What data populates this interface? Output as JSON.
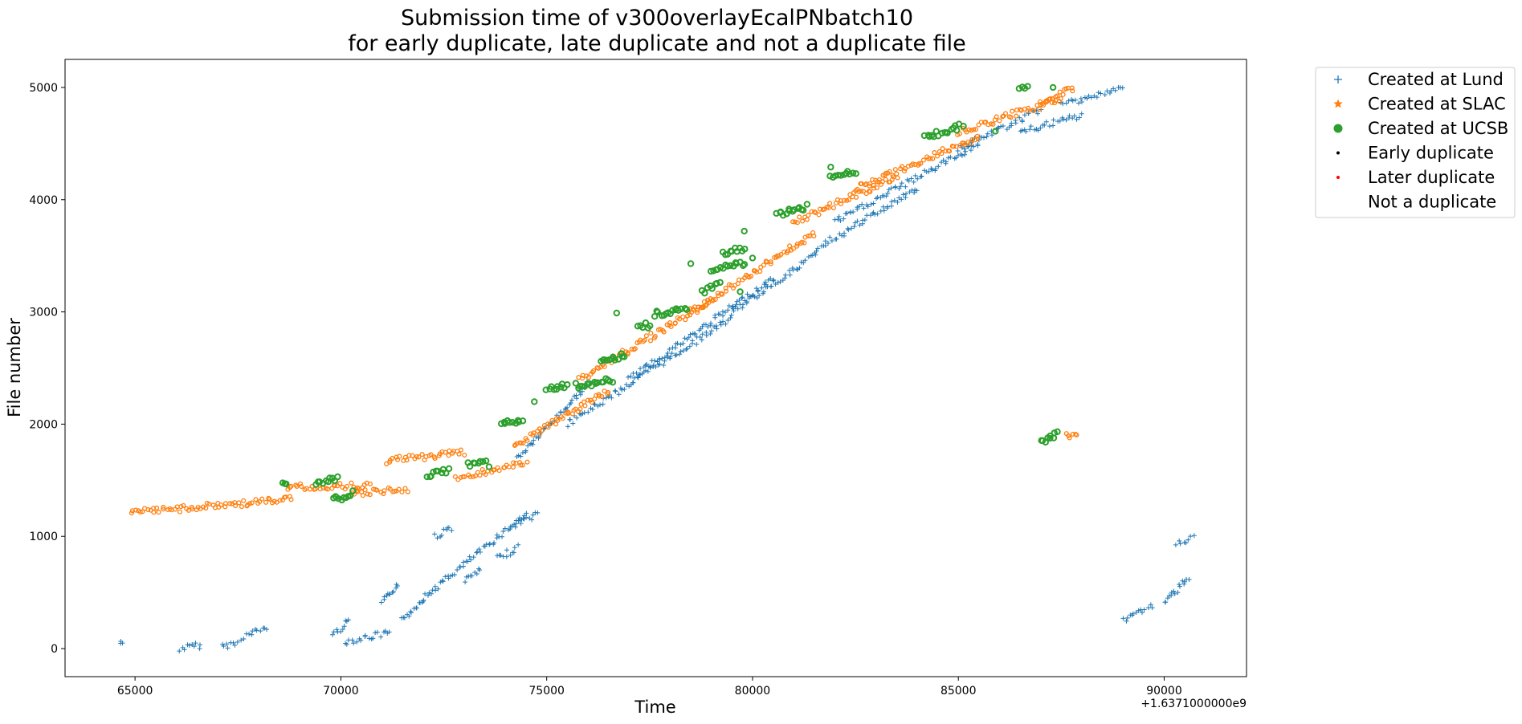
{
  "chart_data": {
    "type": "scatter",
    "title_line1": "Submission time of v300overlayEcalPNbatch10",
    "title_line2": "for early duplicate, late duplicate and not a duplicate file",
    "xlabel": "Time",
    "ylabel": "File number",
    "x_offset_label": "+1.6371000000e9",
    "xlim": [
      63300,
      92000
    ],
    "ylim": [
      -250,
      5250
    ],
    "xticks": [
      65000,
      70000,
      75000,
      80000,
      85000,
      90000
    ],
    "xtick_labels": [
      "65000",
      "70000",
      "75000",
      "80000",
      "85000",
      "90000"
    ],
    "yticks": [
      0,
      1000,
      2000,
      3000,
      4000,
      5000
    ],
    "ytick_labels": [
      "0",
      "1000",
      "2000",
      "3000",
      "4000",
      "5000"
    ],
    "legend_position": "outside upper right",
    "series": [
      {
        "name": "Created at Lund",
        "marker": "+",
        "color": "#1f77b4",
        "segments": [
          {
            "x0": 64650,
            "y0": 50,
            "x1": 64700,
            "y1": 50
          },
          {
            "x0": 66100,
            "y0": 0,
            "x1": 66600,
            "y1": 30
          },
          {
            "x0": 67100,
            "y0": 20,
            "x1": 67500,
            "y1": 50
          },
          {
            "x0": 67600,
            "y0": 100,
            "x1": 68200,
            "y1": 190
          },
          {
            "x0": 69800,
            "y0": 120,
            "x1": 70200,
            "y1": 250
          },
          {
            "x0": 70100,
            "y0": 60,
            "x1": 71200,
            "y1": 140
          },
          {
            "x0": 71000,
            "y0": 400,
            "x1": 71400,
            "y1": 580
          },
          {
            "x0": 71500,
            "y0": 250,
            "x1": 72000,
            "y1": 450
          },
          {
            "x0": 72000,
            "y0": 450,
            "x1": 74500,
            "y1": 1200
          },
          {
            "x0": 72300,
            "y0": 1000,
            "x1": 72700,
            "y1": 1080
          },
          {
            "x0": 73000,
            "y0": 600,
            "x1": 73400,
            "y1": 700
          },
          {
            "x0": 73800,
            "y0": 800,
            "x1": 74300,
            "y1": 900
          },
          {
            "x0": 74200,
            "y0": 1100,
            "x1": 74800,
            "y1": 1200
          },
          {
            "x0": 74300,
            "y0": 1700,
            "x1": 76000,
            "y1": 2350
          },
          {
            "x0": 75500,
            "y0": 2000,
            "x1": 79500,
            "y1": 2950
          },
          {
            "x0": 77000,
            "y0": 2400,
            "x1": 80500,
            "y1": 3300
          },
          {
            "x0": 79500,
            "y0": 3000,
            "x1": 81500,
            "y1": 3500
          },
          {
            "x0": 81500,
            "y0": 3550,
            "x1": 84000,
            "y1": 4100
          },
          {
            "x0": 82000,
            "y0": 3800,
            "x1": 85500,
            "y1": 4500
          },
          {
            "x0": 85000,
            "y0": 4450,
            "x1": 87000,
            "y1": 4800
          },
          {
            "x0": 86500,
            "y0": 4600,
            "x1": 88000,
            "y1": 4750
          },
          {
            "x0": 87500,
            "y0": 4850,
            "x1": 89000,
            "y1": 4990
          },
          {
            "x0": 89000,
            "y0": 260,
            "x1": 89700,
            "y1": 380
          },
          {
            "x0": 90000,
            "y0": 400,
            "x1": 90600,
            "y1": 640
          },
          {
            "x0": 90300,
            "y0": 930,
            "x1": 90700,
            "y1": 980
          }
        ]
      },
      {
        "name": "Created at SLAC",
        "marker": "*",
        "color": "#ff7f0e",
        "segments": [
          {
            "x0": 64900,
            "y0": 1210,
            "x1": 68800,
            "y1": 1330
          },
          {
            "x0": 68700,
            "y0": 1440,
            "x1": 70700,
            "y1": 1450
          },
          {
            "x0": 70200,
            "y0": 1380,
            "x1": 71600,
            "y1": 1420
          },
          {
            "x0": 71100,
            "y0": 1670,
            "x1": 73000,
            "y1": 1750
          },
          {
            "x0": 72800,
            "y0": 1520,
            "x1": 74500,
            "y1": 1650
          },
          {
            "x0": 74200,
            "y0": 1800,
            "x1": 76500,
            "y1": 2300
          },
          {
            "x0": 75800,
            "y0": 2400,
            "x1": 79000,
            "y1": 3100
          },
          {
            "x0": 78500,
            "y0": 3000,
            "x1": 81500,
            "y1": 3700
          },
          {
            "x0": 81000,
            "y0": 3800,
            "x1": 83500,
            "y1": 4200
          },
          {
            "x0": 82500,
            "y0": 4100,
            "x1": 85500,
            "y1": 4560
          },
          {
            "x0": 85000,
            "y0": 4600,
            "x1": 87500,
            "y1": 4900
          },
          {
            "x0": 87000,
            "y0": 4860,
            "x1": 87800,
            "y1": 4990
          },
          {
            "x0": 87600,
            "y0": 1900,
            "x1": 87900,
            "y1": 1900
          }
        ]
      },
      {
        "name": "Created at UCSB",
        "marker": "o",
        "color": "#2ca02c",
        "segments": [
          {
            "x0": 68600,
            "y0": 1490,
            "x1": 68650,
            "y1": 1490
          },
          {
            "x0": 69400,
            "y0": 1480,
            "x1": 69900,
            "y1": 1520
          },
          {
            "x0": 69800,
            "y0": 1330,
            "x1": 70300,
            "y1": 1380
          },
          {
            "x0": 72100,
            "y0": 1540,
            "x1": 72600,
            "y1": 1580
          },
          {
            "x0": 73100,
            "y0": 1630,
            "x1": 73500,
            "y1": 1660
          },
          {
            "x0": 73900,
            "y0": 2000,
            "x1": 74400,
            "y1": 2040
          },
          {
            "x0": 75000,
            "y0": 2300,
            "x1": 75500,
            "y1": 2350
          },
          {
            "x0": 75700,
            "y0": 2340,
            "x1": 76600,
            "y1": 2400
          },
          {
            "x0": 76300,
            "y0": 2550,
            "x1": 76900,
            "y1": 2620
          },
          {
            "x0": 77200,
            "y0": 2860,
            "x1": 77500,
            "y1": 2890
          },
          {
            "x0": 77600,
            "y0": 2980,
            "x1": 78400,
            "y1": 3040
          },
          {
            "x0": 78800,
            "y0": 3180,
            "x1": 79200,
            "y1": 3240
          },
          {
            "x0": 79000,
            "y0": 3380,
            "x1": 79800,
            "y1": 3440
          },
          {
            "x0": 79300,
            "y0": 3530,
            "x1": 79800,
            "y1": 3560
          },
          {
            "x0": 80600,
            "y0": 3860,
            "x1": 81300,
            "y1": 3940
          },
          {
            "x0": 81900,
            "y0": 4200,
            "x1": 82500,
            "y1": 4240
          },
          {
            "x0": 84200,
            "y0": 4550,
            "x1": 85100,
            "y1": 4660
          },
          {
            "x0": 86500,
            "y0": 4990,
            "x1": 86700,
            "y1": 5000
          },
          {
            "x0": 87000,
            "y0": 1840,
            "x1": 87400,
            "y1": 1910
          }
        ],
        "points": [
          {
            "x": 76700,
            "y": 2990
          },
          {
            "x": 78500,
            "y": 3430
          },
          {
            "x": 79800,
            "y": 3720
          },
          {
            "x": 79700,
            "y": 3180
          },
          {
            "x": 80000,
            "y": 3480
          },
          {
            "x": 81900,
            "y": 4290
          },
          {
            "x": 85900,
            "y": 4610
          },
          {
            "x": 87300,
            "y": 5000
          },
          {
            "x": 74700,
            "y": 2200
          },
          {
            "x": 73600,
            "y": 1620
          }
        ]
      },
      {
        "name": "Early duplicate",
        "marker": ".",
        "color": "#000000",
        "points": []
      },
      {
        "name": "Later duplicate",
        "marker": ".",
        "color": "#ff0000",
        "points": []
      },
      {
        "name": "Not a duplicate",
        "marker": "none",
        "color": "#ffffff",
        "points": []
      }
    ]
  }
}
